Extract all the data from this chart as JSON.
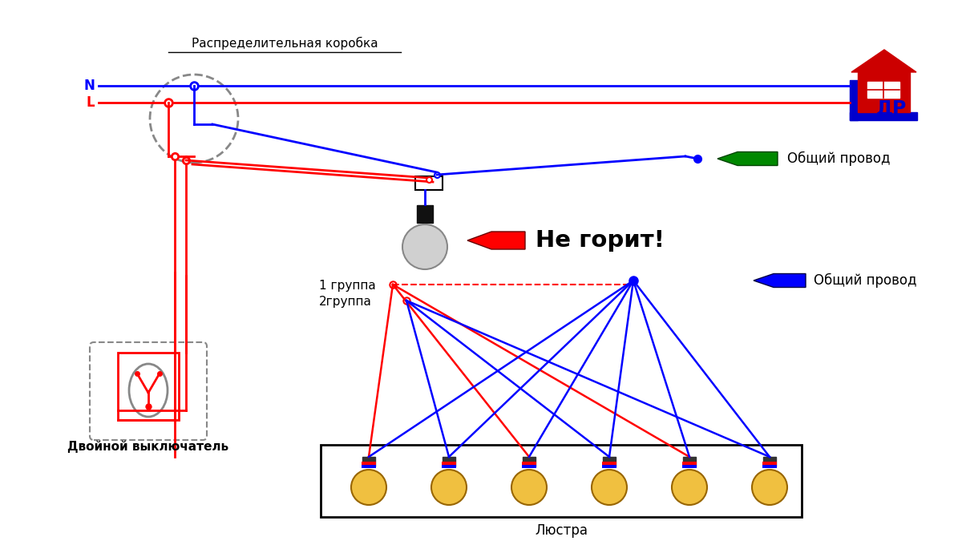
{
  "bg_color": "#ffffff",
  "dist_box_label": "Распределительная коробка",
  "switch_label": "Двойной выключатель",
  "chandelier_label": "Люстра",
  "group1_label": "1 группа",
  "group2_label": "2группа",
  "common_wire_label": "Общий провод",
  "not_burning_label": "Не горит!",
  "N_label": "N",
  "L_label": "L",
  "blue": "#0000ff",
  "red": "#ff0000",
  "green": "#008800",
  "gray": "#888888",
  "dark_gray": "#444444",
  "black": "#000000",
  "logo_red": "#cc0000",
  "logo_blue": "#0000cc",
  "bulb_fill": "#f0c040",
  "bulb_edge": "#996600"
}
